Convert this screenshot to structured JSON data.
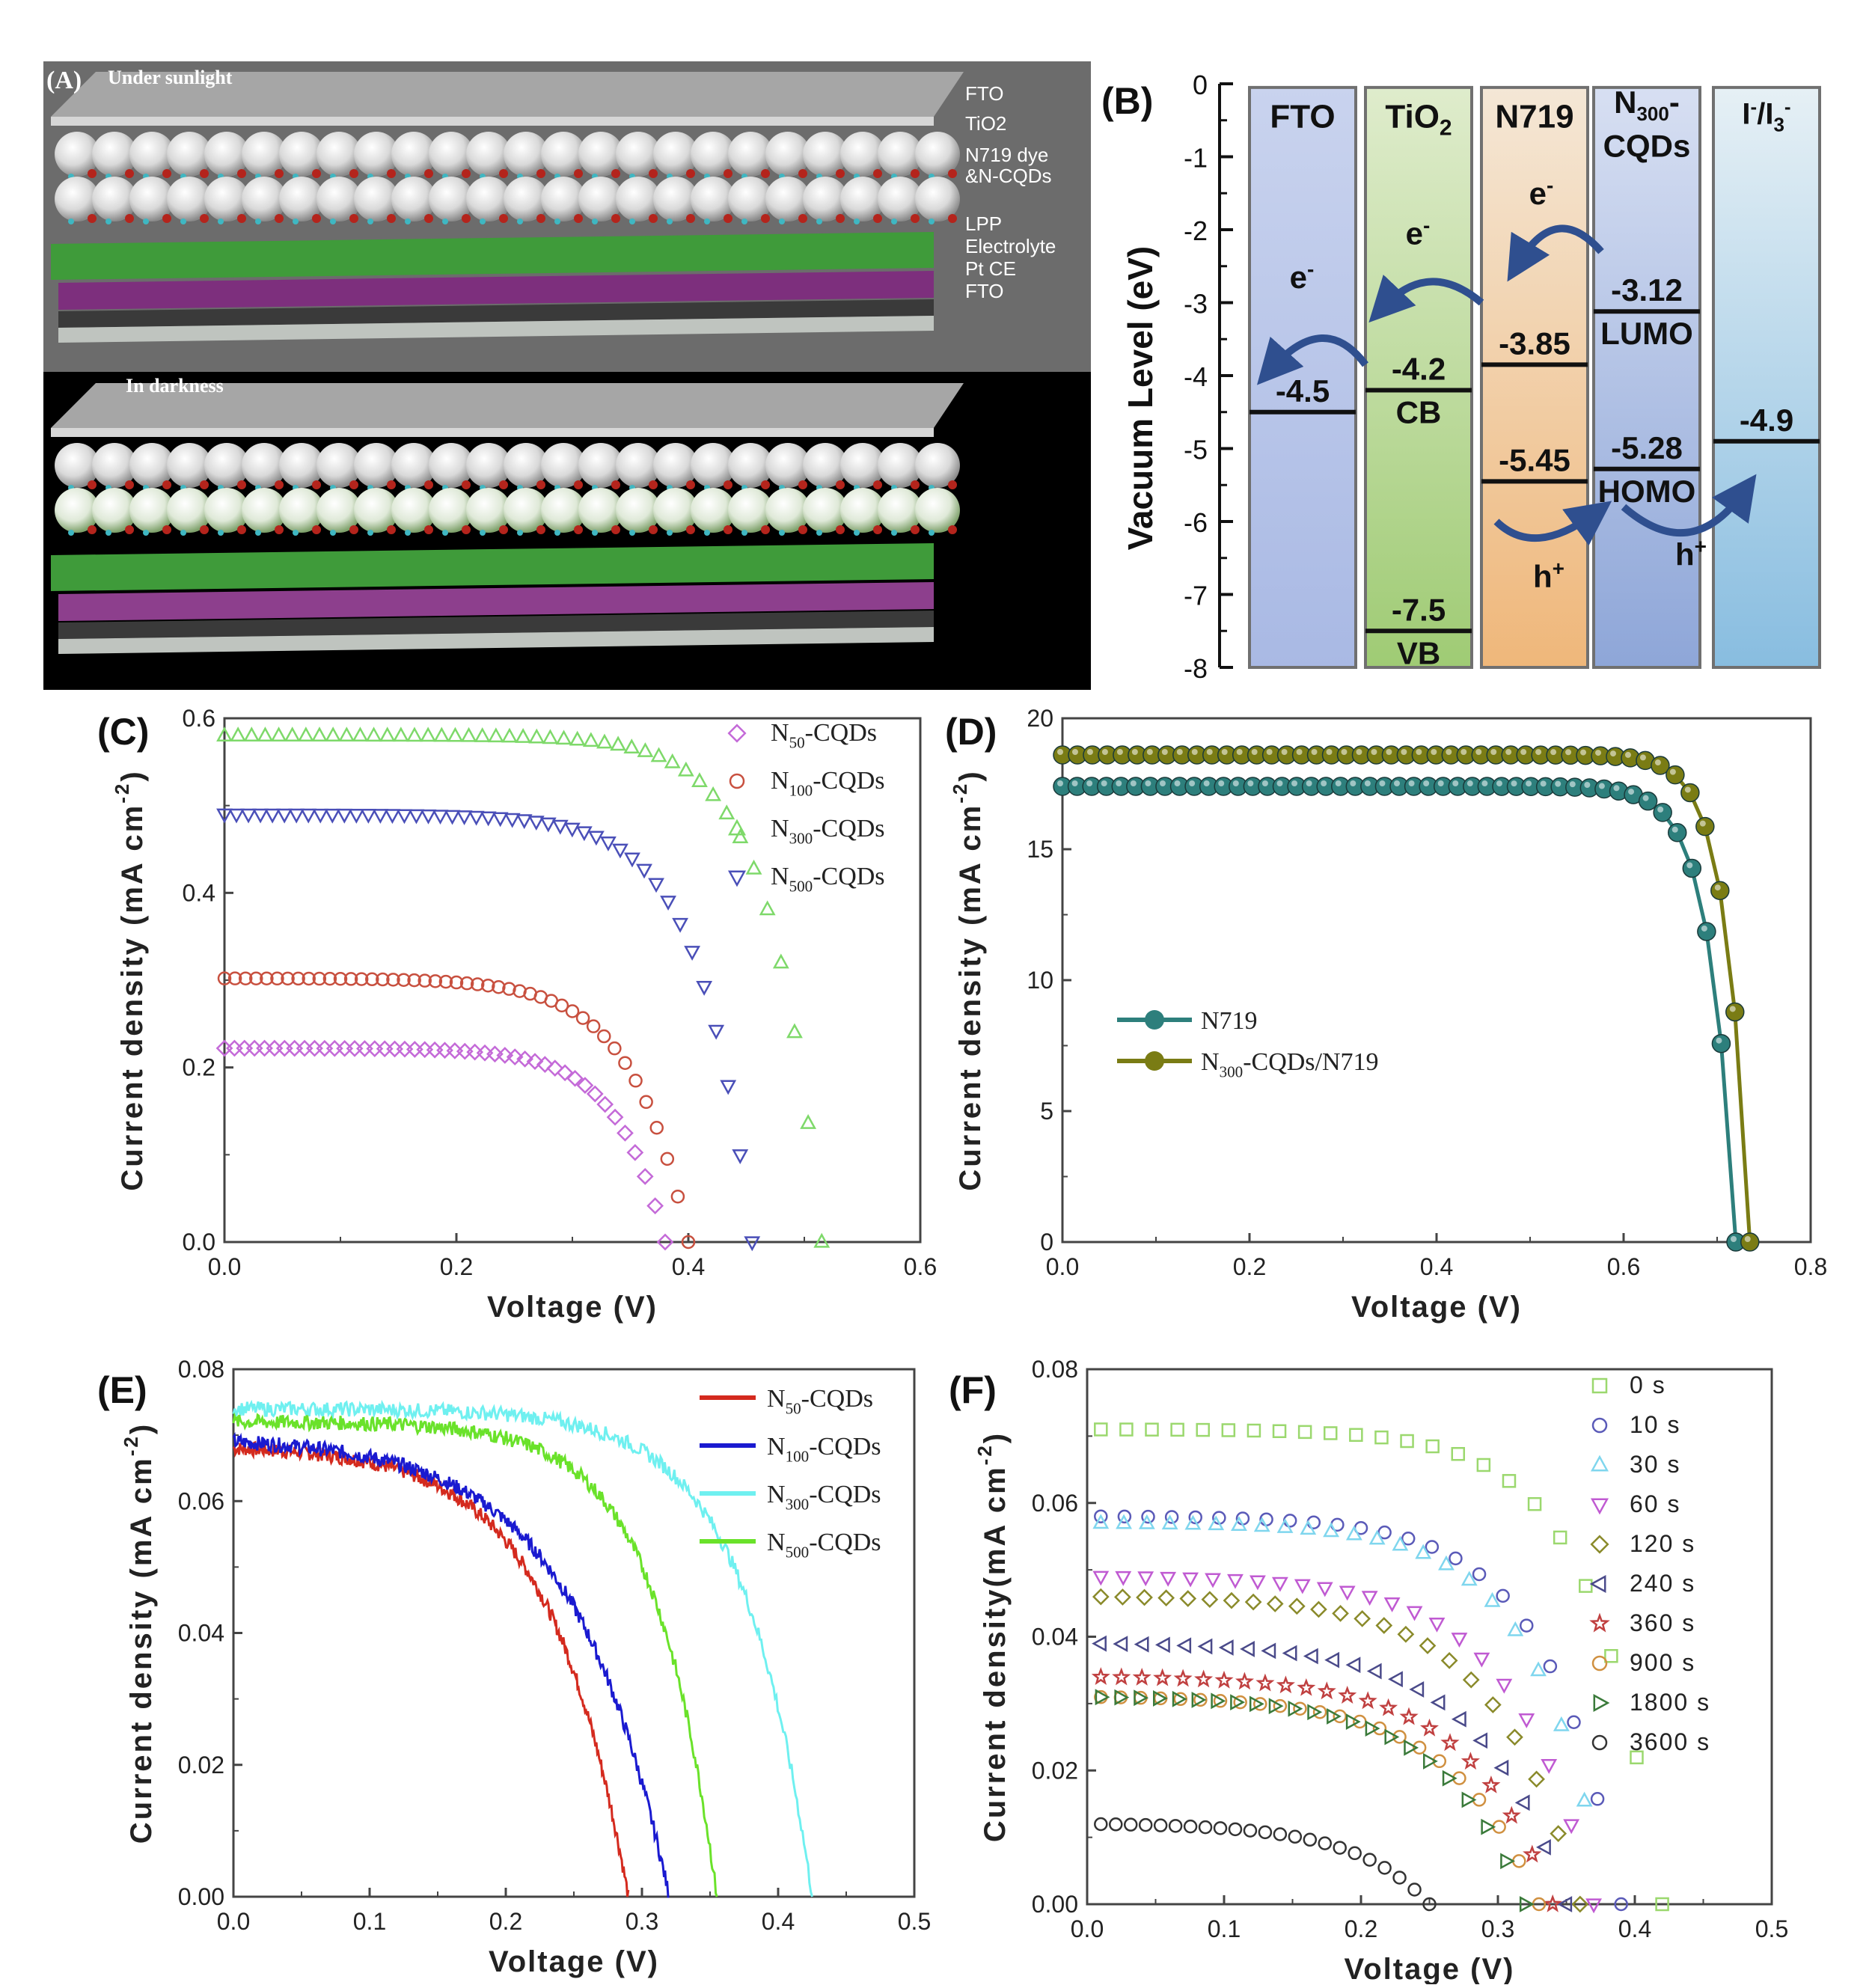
{
  "figure": {
    "panel_a": {
      "letter": "(A)",
      "top_title": "Under sunlight",
      "bottom_title": "In darkness",
      "layer_labels": [
        "FTO",
        "TiO2",
        "N719 dye",
        "&N-CQDs",
        "LPP",
        "Electrolyte",
        "Pt CE",
        "FTO"
      ]
    },
    "panel_b": {
      "letter": "(B)",
      "ylabel": "Vacuum Level (eV)",
      "yticks": [
        0,
        -1,
        -2,
        -3,
        -4,
        -5,
        -6,
        -7,
        -8
      ],
      "columns": [
        {
          "label": "FTO",
          "levels": [
            {
              "value": -4.5,
              "text": "-4.5"
            }
          ],
          "color_top": "#c9d3ee",
          "color_bottom": "#a9b9e4"
        },
        {
          "label": "TiO2",
          "levels": [
            {
              "value": -4.2,
              "text": "-4.2",
              "tag": "CB"
            },
            {
              "value": -7.5,
              "text": "-7.5",
              "tag": "VB"
            }
          ],
          "color_top": "#dfeccc",
          "color_bottom": "#9fcb74"
        },
        {
          "label": "N719",
          "levels": [
            {
              "value": -3.85,
              "text": "-3.85"
            },
            {
              "value": -5.45,
              "text": "-5.45"
            }
          ],
          "color_top": "#f4e7d6",
          "color_bottom": "#efb77a"
        },
        {
          "label": "N300-CQDs",
          "levels": [
            {
              "value": -3.12,
              "text": "-3.12",
              "tag": "LUMO"
            },
            {
              "value": -5.28,
              "text": "-5.28",
              "tag": "HOMO"
            }
          ],
          "color_top": "#d7dff2",
          "color_bottom": "#8ea6d8"
        },
        {
          "label": "I-/I3-",
          "levels": [
            {
              "value": -4.9,
              "text": "-4.9"
            }
          ],
          "color_top": "#e6f0f5",
          "color_bottom": "#88bde0"
        }
      ],
      "carrier_labels": [
        "e-",
        "e-",
        "e-",
        "h+",
        "h+"
      ]
    },
    "panel_c": {
      "letter": "(C)",
      "chart_data": {
        "type": "scatter",
        "xlabel": "Voltage (V)",
        "ylabel": "Current density (mA cm-2)",
        "xlim": [
          0,
          0.6
        ],
        "ylim": [
          0,
          0.6
        ],
        "xticks": [
          "0.0",
          "0.2",
          "0.4",
          "0.6"
        ],
        "yticks": [
          "0.0",
          "0.2",
          "0.4",
          "0.6"
        ],
        "series": [
          {
            "name": "N50-CQDs",
            "marker": "diamond",
            "color": "#c46ad8",
            "jsc": 0.222,
            "voc": 0.38,
            "k": 0.11
          },
          {
            "name": "N100-CQDs",
            "marker": "circle",
            "color": "#c8503f",
            "jsc": 0.302,
            "voc": 0.4,
            "k": 0.12
          },
          {
            "name": "N300-CQDs",
            "marker": "triangle-up",
            "color": "#7ed96a",
            "jsc": 0.58,
            "voc": 0.515,
            "k": 0.085
          },
          {
            "name": "N500-CQDs",
            "marker": "triangle-down",
            "color": "#4a4fb8",
            "jsc": 0.49,
            "voc": 0.455,
            "k": 0.1
          }
        ],
        "legend": [
          {
            "base": "N",
            "sub": "50",
            "rest": "-CQDs"
          },
          {
            "base": "N",
            "sub": "100",
            "rest": "-CQDs"
          },
          {
            "base": "N",
            "sub": "300",
            "rest": "-CQDs"
          },
          {
            "base": "N",
            "sub": "500",
            "rest": "-CQDs"
          }
        ]
      }
    },
    "panel_d": {
      "letter": "(D)",
      "chart_data": {
        "type": "line",
        "xlabel": "Voltage (V)",
        "ylabel": "Current density (mA cm-2)",
        "xlim": [
          0,
          0.8
        ],
        "ylim": [
          0,
          20
        ],
        "xticks": [
          "0.0",
          "0.2",
          "0.4",
          "0.6",
          "0.8"
        ],
        "yticks": [
          "0",
          "5",
          "10",
          "15",
          "20"
        ],
        "series": [
          {
            "name": "N719",
            "color": "#2d7f7c",
            "jsc": 17.4,
            "voc": 0.72,
            "k": 0.038
          },
          {
            "name": "N300-CQDs/N719",
            "color": "#7a7c14",
            "jsc": 18.6,
            "voc": 0.735,
            "k": 0.034
          }
        ],
        "legend": [
          {
            "base": "N719",
            "sub": "",
            "rest": ""
          },
          {
            "base": "N",
            "sub": "300",
            "rest": "-CQDs/N719"
          }
        ]
      }
    },
    "panel_e": {
      "letter": "(E)",
      "chart_data": {
        "type": "line",
        "xlabel": "Voltage (V)",
        "ylabel": "Current density (mA cm-2)",
        "xlim": [
          0,
          0.5
        ],
        "ylim": [
          0,
          0.08
        ],
        "xticks": [
          "0.0",
          "0.1",
          "0.2",
          "0.3",
          "0.4",
          "0.5"
        ],
        "yticks": [
          "0.00",
          "0.02",
          "0.04",
          "0.06",
          "0.08"
        ],
        "series": [
          {
            "name": "N50-CQDs",
            "color": "#d42a1e",
            "jsc": 0.068,
            "voc": 0.29,
            "k": 0.2
          },
          {
            "name": "N100-CQDs",
            "color": "#1a1ad0",
            "jsc": 0.069,
            "voc": 0.32,
            "k": 0.22
          },
          {
            "name": "N300-CQDs",
            "color": "#6ff0f0",
            "jsc": 0.074,
            "voc": 0.425,
            "k": 0.12
          },
          {
            "name": "N500-CQDs",
            "color": "#6ae22a",
            "jsc": 0.072,
            "voc": 0.355,
            "k": 0.13
          }
        ],
        "legend": [
          {
            "base": "N",
            "sub": "50",
            "rest": "-CQDs"
          },
          {
            "base": "N",
            "sub": "100",
            "rest": "-CQDs"
          },
          {
            "base": "N",
            "sub": "300",
            "rest": "-CQDs"
          },
          {
            "base": "N",
            "sub": "500",
            "rest": "-CQDs"
          }
        ]
      }
    },
    "panel_f": {
      "letter": "(F)",
      "chart_data": {
        "type": "scatter",
        "xlabel": "Voltage (V)",
        "ylabel": "Current density(mA cm-2)",
        "xlim": [
          0,
          0.5
        ],
        "ylim": [
          0,
          0.08
        ],
        "xticks": [
          "0.0",
          "0.1",
          "0.2",
          "0.3",
          "0.4",
          "0.5"
        ],
        "yticks": [
          "0.00",
          "0.02",
          "0.04",
          "0.06",
          "0.08"
        ],
        "series": [
          {
            "name": "0 s",
            "marker": "square",
            "color": "#9bd86e",
            "jsc": 0.071,
            "voc": 0.42,
            "k": 0.12
          },
          {
            "name": "10 s",
            "marker": "circle",
            "color": "#5a5ab8",
            "jsc": 0.058,
            "voc": 0.39,
            "k": 0.14
          },
          {
            "name": "30 s",
            "marker": "triangle-up",
            "color": "#7fd6ee",
            "jsc": 0.057,
            "voc": 0.38,
            "k": 0.14
          },
          {
            "name": "60 s",
            "marker": "triangle-down",
            "color": "#c05ad2",
            "jsc": 0.049,
            "voc": 0.37,
            "k": 0.16
          },
          {
            "name": "120 s",
            "marker": "diamond",
            "color": "#8a8a2a",
            "jsc": 0.046,
            "voc": 0.36,
            "k": 0.17
          },
          {
            "name": "240 s",
            "marker": "triangle-left",
            "color": "#4a4a8a",
            "jsc": 0.039,
            "voc": 0.35,
            "k": 0.18
          },
          {
            "name": "360 s",
            "marker": "star",
            "color": "#c04040",
            "jsc": 0.034,
            "voc": 0.34,
            "k": 0.18
          },
          {
            "name": "900 s",
            "marker": "circle",
            "color": "#d09040",
            "jsc": 0.031,
            "voc": 0.33,
            "k": 0.19
          },
          {
            "name": "1800 s",
            "marker": "triangle-right",
            "color": "#3a7a3a",
            "jsc": 0.031,
            "voc": 0.32,
            "k": 0.19
          },
          {
            "name": "3600 s",
            "marker": "circle",
            "color": "#333333",
            "jsc": 0.012,
            "voc": 0.25,
            "k": 0.22
          }
        ]
      }
    }
  }
}
